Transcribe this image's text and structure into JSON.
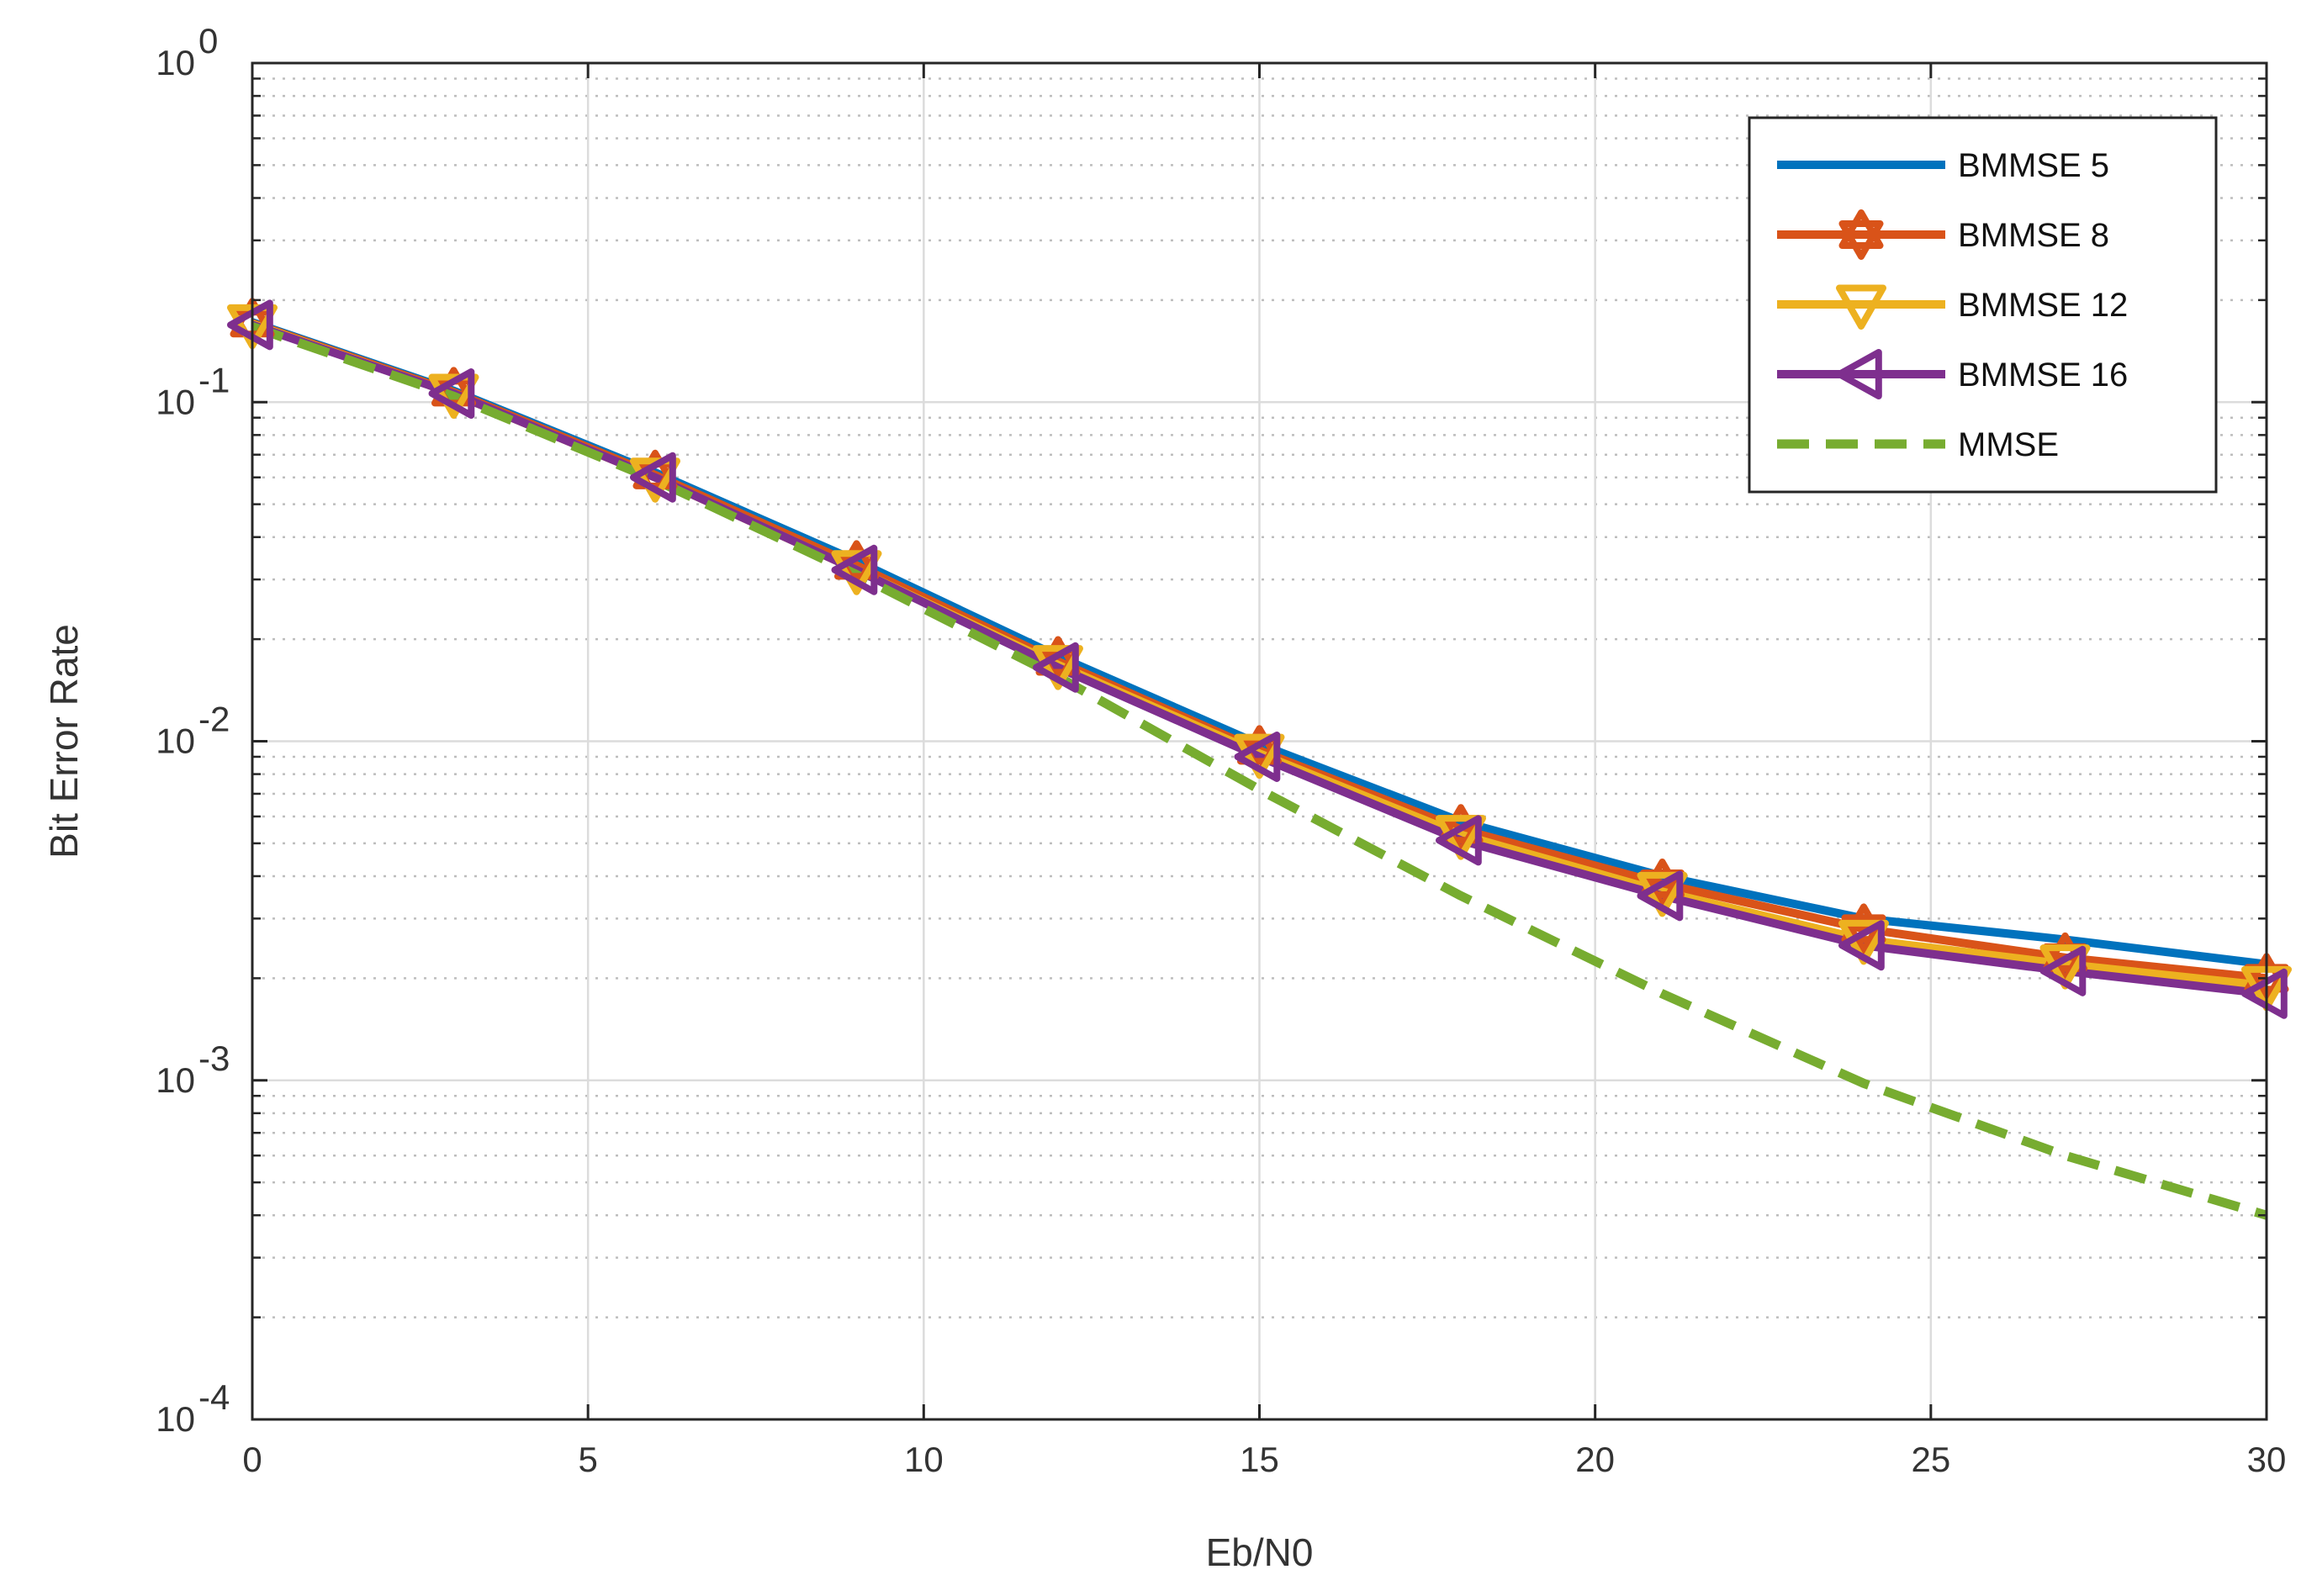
{
  "chart_data": {
    "type": "line",
    "xlabel": "Eb/N0",
    "ylabel": "Bit Error Rate",
    "xlim": [
      0,
      30
    ],
    "ylim": [
      0.0001,
      1
    ],
    "yscale": "log",
    "grid": true,
    "legend_position": "top-right",
    "x_ticks": [
      "0",
      "5",
      "10",
      "15",
      "20",
      "25",
      "30"
    ],
    "y_ticks": [
      {
        "base": "10",
        "exp": "0"
      },
      {
        "base": "10",
        "exp": "-1"
      },
      {
        "base": "10",
        "exp": "-2"
      },
      {
        "base": "10",
        "exp": "-3"
      },
      {
        "base": "10",
        "exp": "-4"
      }
    ],
    "x": [
      0,
      3,
      6,
      9,
      12,
      15,
      18,
      21,
      24,
      27,
      30
    ],
    "series": [
      {
        "name": "BMMSE 5",
        "color": "#0072BD",
        "marker": "none",
        "dash": false,
        "values": [
          0.172,
          0.108,
          0.062,
          0.034,
          0.0178,
          0.0098,
          0.0058,
          0.004,
          0.003,
          0.0026,
          0.0022
        ]
      },
      {
        "name": "BMMSE 8",
        "color": "#D95319",
        "marker": "hexagram",
        "dash": false,
        "values": [
          0.171,
          0.107,
          0.061,
          0.033,
          0.0172,
          0.0094,
          0.0055,
          0.0038,
          0.0028,
          0.0023,
          0.002
        ]
      },
      {
        "name": "BMMSE 12",
        "color": "#EDB120",
        "marker": "triangle-down",
        "dash": false,
        "values": [
          0.17,
          0.106,
          0.06,
          0.032,
          0.0168,
          0.0092,
          0.0053,
          0.0036,
          0.0026,
          0.0022,
          0.0019
        ]
      },
      {
        "name": "BMMSE 16",
        "color": "#7E2F8E",
        "marker": "triangle-left",
        "dash": false,
        "values": [
          0.169,
          0.106,
          0.06,
          0.032,
          0.0165,
          0.009,
          0.0051,
          0.0035,
          0.0025,
          0.0021,
          0.0018
        ]
      },
      {
        "name": "MMSE",
        "color": "#77AC30",
        "marker": "none",
        "dash": true,
        "values": [
          0.167,
          0.104,
          0.059,
          0.031,
          0.0155,
          0.0072,
          0.0035,
          0.0018,
          0.00098,
          0.0006,
          0.0004
        ]
      }
    ]
  }
}
